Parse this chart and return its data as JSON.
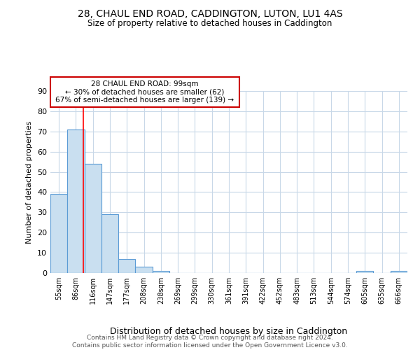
{
  "title1": "28, CHAUL END ROAD, CADDINGTON, LUTON, LU1 4AS",
  "title2": "Size of property relative to detached houses in Caddington",
  "xlabel": "Distribution of detached houses by size in Caddington",
  "ylabel": "Number of detached properties",
  "footer1": "Contains HM Land Registry data © Crown copyright and database right 2024.",
  "footer2": "Contains public sector information licensed under the Open Government Licence v3.0.",
  "categories": [
    "55sqm",
    "86sqm",
    "116sqm",
    "147sqm",
    "177sqm",
    "208sqm",
    "238sqm",
    "269sqm",
    "299sqm",
    "330sqm",
    "361sqm",
    "391sqm",
    "422sqm",
    "452sqm",
    "483sqm",
    "513sqm",
    "544sqm",
    "574sqm",
    "605sqm",
    "635sqm",
    "666sqm"
  ],
  "values": [
    39,
    71,
    54,
    29,
    7,
    3,
    1,
    0,
    0,
    0,
    0,
    0,
    0,
    0,
    0,
    0,
    0,
    0,
    1,
    0,
    1
  ],
  "bar_color": "#c9dff0",
  "bar_edge_color": "#5b9bd5",
  "red_line_x": 1.42,
  "annotation_line1": "28 CHAUL END ROAD: 99sqm",
  "annotation_line2": "← 30% of detached houses are smaller (62)",
  "annotation_line3": "67% of semi-detached houses are larger (139) →",
  "annotation_box_color": "#ffffff",
  "annotation_box_edge_color": "#cc0000",
  "ylim": [
    0,
    90
  ],
  "yticks": [
    0,
    10,
    20,
    30,
    40,
    50,
    60,
    70,
    80,
    90
  ],
  "background_color": "#ffffff",
  "grid_color": "#c8d8e8"
}
